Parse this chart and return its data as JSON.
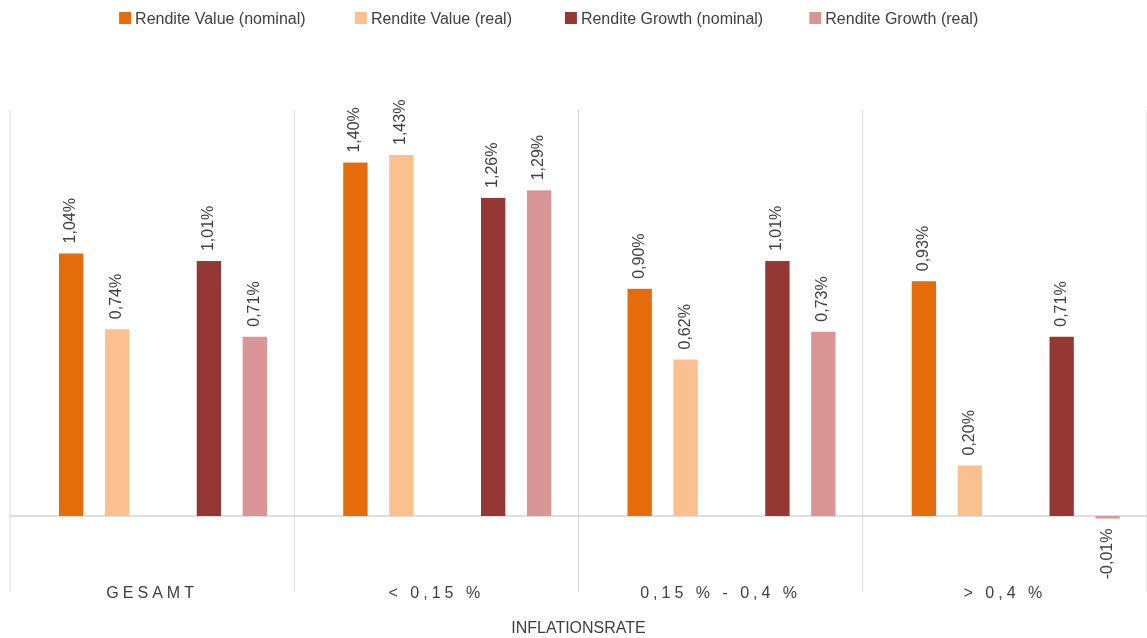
{
  "chart_data": {
    "type": "bar",
    "xlabel": "INFLATIONSRATE",
    "categories": [
      "GESAMT",
      "< 0,15 %",
      "0,15 % - 0,4 %",
      "> 0,4 %"
    ],
    "legend": "top",
    "series": [
      {
        "name": "Rendite Value (nominal)",
        "color": "#e46c0a",
        "values": [
          1.04,
          1.4,
          0.9,
          0.93
        ],
        "value_labels": [
          "1,04%",
          "1,40%",
          "0,90%",
          "0,93%"
        ]
      },
      {
        "name": "Rendite Value (real)",
        "color": "#fac090",
        "values": [
          0.74,
          1.43,
          0.62,
          0.2
        ],
        "value_labels": [
          "0,74%",
          "1,43%",
          "0,62%",
          "0,20%"
        ]
      },
      {
        "name": "Rendite Growth (nominal)",
        "color": "#953735",
        "values": [
          1.01,
          1.26,
          1.01,
          0.71
        ],
        "value_labels": [
          "1,01%",
          "1,26%",
          "1,01%",
          "0,71%"
        ]
      },
      {
        "name": "Rendite Growth (real)",
        "color": "#d99694",
        "values": [
          0.71,
          1.29,
          0.73,
          -0.01
        ],
        "value_labels": [
          "0,71%",
          "1,29%",
          "0,73%",
          "-0,01%"
        ]
      }
    ]
  }
}
